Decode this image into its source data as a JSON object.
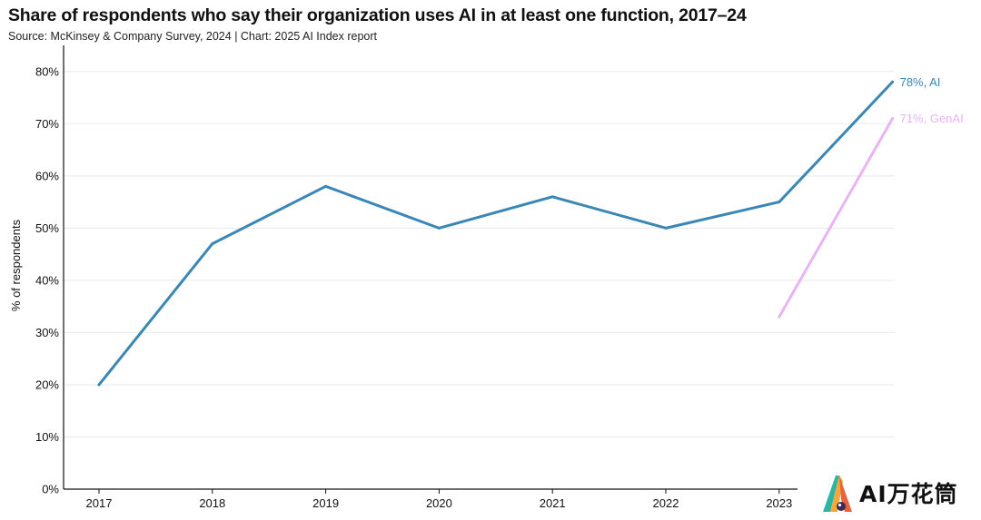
{
  "title": "Share of respondents who say their organization uses AI in at least one function, 2017–24",
  "subtitle": "Source: McKinsey & Company Survey, 2024 | Chart: 2025 AI Index report",
  "watermark": {
    "text": "AI万花筒",
    "icon": "colorful-a-logo-icon"
  },
  "colors": {
    "ai": "#3a87b6",
    "genai": "#e8b4f4",
    "axis": "#111111",
    "grid": "#e9e9e9"
  },
  "chart_data": {
    "type": "line",
    "ylabel": "% of respondents",
    "xlabel": "",
    "categories": [
      "2017",
      "2018",
      "2019",
      "2020",
      "2021",
      "2022",
      "2023",
      "2024"
    ],
    "x_tick_labels": [
      "2017",
      "2018",
      "2019",
      "2020",
      "2021",
      "2022",
      "2023"
    ],
    "y_ticks": [
      "0%",
      "10%",
      "20%",
      "30%",
      "40%",
      "50%",
      "60%",
      "70%",
      "80%"
    ],
    "ylim": [
      0,
      85
    ],
    "grid": "horizontal",
    "series": [
      {
        "name": "AI",
        "x": [
          "2017",
          "2018",
          "2019",
          "2020",
          "2021",
          "2022",
          "2023",
          "2024"
        ],
        "values": [
          20,
          47,
          58,
          50,
          56,
          50,
          55,
          78
        ],
        "end_label": "78%, AI"
      },
      {
        "name": "GenAI",
        "x": [
          "2023",
          "2024"
        ],
        "values": [
          33,
          71
        ],
        "end_label": "71%, GenAI"
      }
    ]
  }
}
